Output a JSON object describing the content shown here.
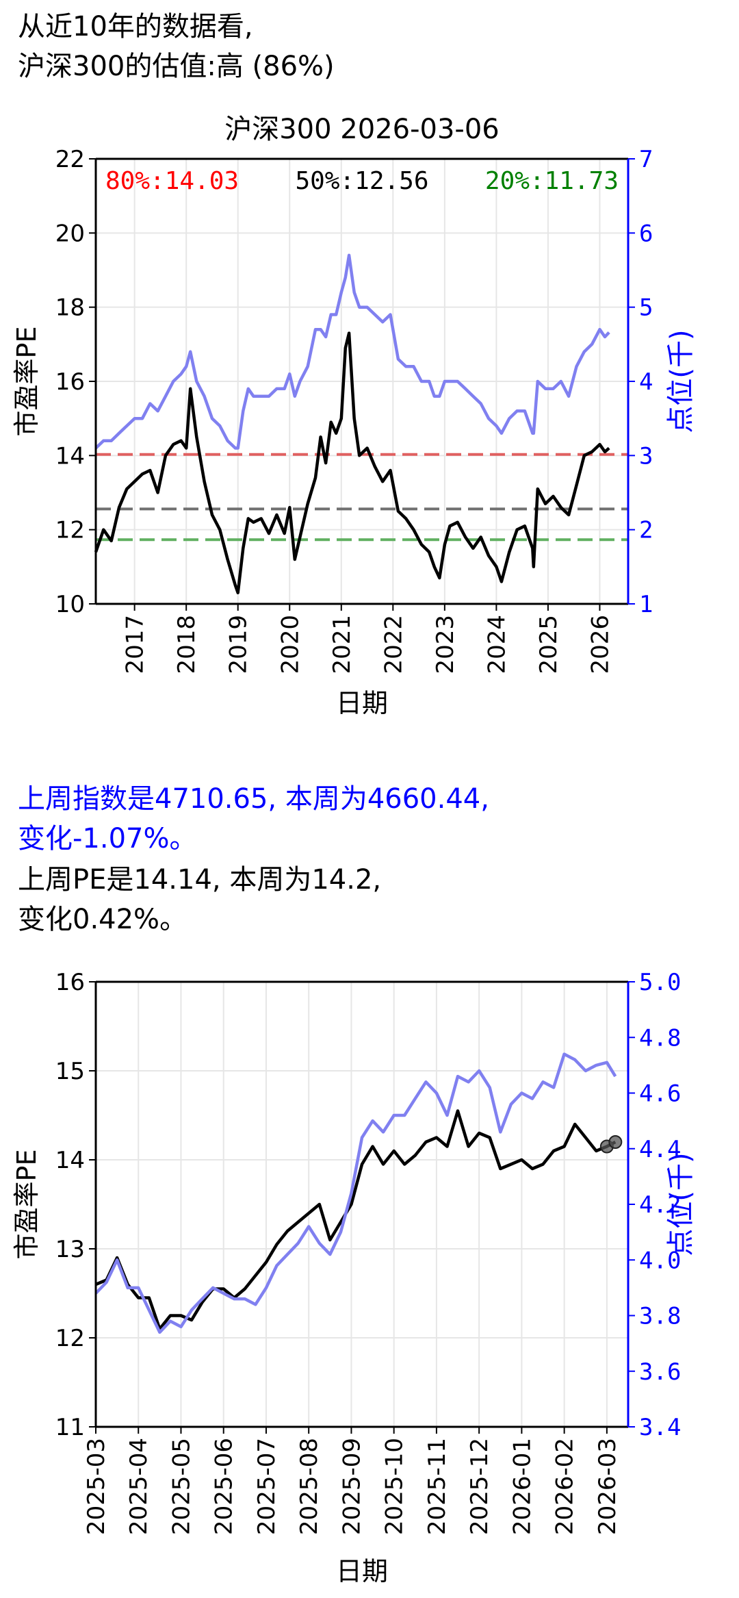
{
  "header": {
    "line1": "从近10年的数据看,",
    "line2": "沪深300的估值:高 (86%)"
  },
  "summary": {
    "index_line1": "上周指数是4710.65, 本周为4660.44,",
    "index_line2": "变化-1.07%。",
    "pe_line1": "上周PE是14.14, 本周为14.2,",
    "pe_line2": "变化0.42%。"
  },
  "colors": {
    "pe_line": "#000000",
    "index_line": "#8080f0",
    "right_axis": "#0000ff",
    "p80": "#e06060",
    "p50": "#707070",
    "p20": "#60b060"
  },
  "chart_data": [
    {
      "type": "line",
      "title": "沪深300 2026-03-06",
      "xlabel": "日期",
      "ylabel": "市盈率PE",
      "y2label": "点位(千)",
      "ylim": [
        10,
        22
      ],
      "y2lim": [
        1,
        7
      ],
      "yticks": [
        "10",
        "12",
        "14",
        "16",
        "18",
        "20",
        "22"
      ],
      "y2ticks": [
        "1",
        "2",
        "3",
        "4",
        "5",
        "6",
        "7"
      ],
      "xlim": [
        2016.25,
        2026.55
      ],
      "xticks": [
        "2017",
        "2018",
        "2019",
        "2020",
        "2021",
        "2022",
        "2023",
        "2024",
        "2025",
        "2026"
      ],
      "grid": true,
      "percentiles": [
        {
          "label": "80%:14.03",
          "value": 14.03,
          "color": "#e06060",
          "text_color": "#ff0000"
        },
        {
          "label": "50%:12.56",
          "value": 12.56,
          "color": "#707070",
          "text_color": "#000000"
        },
        {
          "label": "20%:11.73",
          "value": 11.73,
          "color": "#60b060",
          "text_color": "#008000"
        }
      ],
      "series": [
        {
          "axis": "left",
          "x": [
            2016.25,
            2016.4,
            2016.55,
            2016.7,
            2016.85,
            2017.0,
            2017.15,
            2017.3,
            2017.45,
            2017.6,
            2017.75,
            2017.9,
            2018.0,
            2018.08,
            2018.2,
            2018.35,
            2018.5,
            2018.65,
            2018.8,
            2018.95,
            2019.0,
            2019.1,
            2019.2,
            2019.3,
            2019.45,
            2019.6,
            2019.75,
            2019.9,
            2020.0,
            2020.1,
            2020.2,
            2020.35,
            2020.5,
            2020.6,
            2020.7,
            2020.8,
            2020.9,
            2021.0,
            2021.08,
            2021.15,
            2021.25,
            2021.35,
            2021.5,
            2021.65,
            2021.8,
            2021.95,
            2022.1,
            2022.25,
            2022.4,
            2022.55,
            2022.7,
            2022.8,
            2022.9,
            2023.0,
            2023.1,
            2023.25,
            2023.4,
            2023.55,
            2023.7,
            2023.85,
            2024.0,
            2024.1,
            2024.25,
            2024.4,
            2024.55,
            2024.7,
            2024.72,
            2024.8,
            2024.95,
            2025.1,
            2025.25,
            2025.4,
            2025.55,
            2025.7,
            2025.85,
            2026.0,
            2026.1,
            2026.18
          ],
          "values": [
            11.4,
            12.0,
            11.7,
            12.6,
            13.1,
            13.3,
            13.5,
            13.6,
            13.0,
            14.0,
            14.3,
            14.4,
            14.2,
            15.8,
            14.5,
            13.3,
            12.4,
            12.0,
            11.2,
            10.5,
            10.3,
            11.5,
            12.3,
            12.2,
            12.3,
            11.9,
            12.4,
            11.9,
            12.6,
            11.2,
            11.8,
            12.7,
            13.4,
            14.5,
            13.8,
            14.9,
            14.6,
            15.0,
            16.9,
            17.3,
            15.0,
            14.0,
            14.2,
            13.7,
            13.3,
            13.6,
            12.5,
            12.3,
            12.0,
            11.6,
            11.4,
            11.0,
            10.7,
            11.6,
            12.1,
            12.2,
            11.8,
            11.5,
            11.8,
            11.3,
            11.0,
            10.6,
            11.4,
            12.0,
            12.1,
            11.5,
            11.0,
            13.1,
            12.7,
            12.9,
            12.6,
            12.4,
            13.2,
            14.0,
            14.1,
            14.3,
            14.1,
            14.2
          ],
          "name": ""
        },
        {
          "axis": "right",
          "x": [
            2016.25,
            2016.4,
            2016.55,
            2016.7,
            2016.85,
            2017.0,
            2017.15,
            2017.3,
            2017.45,
            2017.6,
            2017.75,
            2017.9,
            2018.0,
            2018.08,
            2018.2,
            2018.35,
            2018.5,
            2018.65,
            2018.8,
            2018.95,
            2019.0,
            2019.1,
            2019.2,
            2019.3,
            2019.45,
            2019.6,
            2019.75,
            2019.9,
            2020.0,
            2020.1,
            2020.2,
            2020.35,
            2020.5,
            2020.6,
            2020.7,
            2020.8,
            2020.9,
            2021.0,
            2021.08,
            2021.15,
            2021.25,
            2021.35,
            2021.5,
            2021.65,
            2021.8,
            2021.95,
            2022.1,
            2022.25,
            2022.4,
            2022.55,
            2022.7,
            2022.8,
            2022.9,
            2023.0,
            2023.1,
            2023.25,
            2023.4,
            2023.55,
            2023.7,
            2023.85,
            2024.0,
            2024.1,
            2024.25,
            2024.4,
            2024.55,
            2024.7,
            2024.72,
            2024.8,
            2024.95,
            2025.1,
            2025.25,
            2025.4,
            2025.55,
            2025.7,
            2025.85,
            2026.0,
            2026.1,
            2026.18
          ],
          "values": [
            3.1,
            3.2,
            3.2,
            3.3,
            3.4,
            3.5,
            3.5,
            3.7,
            3.6,
            3.8,
            4.0,
            4.1,
            4.2,
            4.4,
            4.0,
            3.8,
            3.5,
            3.4,
            3.2,
            3.1,
            3.1,
            3.6,
            3.9,
            3.8,
            3.8,
            3.8,
            3.9,
            3.9,
            4.1,
            3.8,
            4.0,
            4.2,
            4.7,
            4.7,
            4.6,
            4.9,
            4.9,
            5.2,
            5.4,
            5.7,
            5.2,
            5.0,
            5.0,
            4.9,
            4.8,
            4.9,
            4.3,
            4.2,
            4.2,
            4.0,
            4.0,
            3.8,
            3.8,
            4.0,
            4.0,
            4.0,
            3.9,
            3.8,
            3.7,
            3.5,
            3.4,
            3.3,
            3.5,
            3.6,
            3.6,
            3.3,
            3.3,
            4.0,
            3.9,
            3.9,
            4.0,
            3.8,
            4.2,
            4.4,
            4.5,
            4.7,
            4.6,
            4.66
          ],
          "name": ""
        }
      ]
    },
    {
      "type": "line",
      "xlabel": "日期",
      "ylabel": "市盈率PE",
      "y2label": "点位(千)",
      "ylim": [
        11,
        16
      ],
      "y2lim": [
        3.4,
        5.0
      ],
      "yticks": [
        "11",
        "12",
        "13",
        "14",
        "15",
        "16"
      ],
      "y2ticks": [
        "3.4",
        "3.6",
        "3.8",
        "4.0",
        "4.2",
        "4.4",
        "4.6",
        "4.8",
        "5.0"
      ],
      "xlim": [
        0,
        12.5
      ],
      "xticks": [
        "2025-03",
        "2025-04",
        "2025-05",
        "2025-06",
        "2025-07",
        "2025-08",
        "2025-09",
        "2025-10",
        "2025-11",
        "2025-12",
        "2026-01",
        "2026-02",
        "2026-03"
      ],
      "grid": true,
      "series": [
        {
          "axis": "left",
          "x": [
            0,
            0.25,
            0.5,
            0.75,
            1.0,
            1.25,
            1.5,
            1.75,
            2.0,
            2.25,
            2.5,
            2.75,
            3.0,
            3.25,
            3.5,
            3.75,
            4.0,
            4.25,
            4.5,
            4.75,
            5.0,
            5.25,
            5.5,
            5.75,
            6.0,
            6.25,
            6.5,
            6.75,
            7.0,
            7.25,
            7.5,
            7.75,
            8.0,
            8.25,
            8.5,
            8.75,
            9.0,
            9.25,
            9.5,
            9.75,
            10.0,
            10.25,
            10.5,
            10.75,
            11.0,
            11.25,
            11.5,
            11.75,
            12.0,
            12.2
          ],
          "values": [
            12.6,
            12.65,
            12.9,
            12.6,
            12.45,
            12.45,
            12.1,
            12.25,
            12.25,
            12.2,
            12.4,
            12.55,
            12.55,
            12.45,
            12.55,
            12.7,
            12.85,
            13.05,
            13.2,
            13.3,
            13.4,
            13.5,
            13.1,
            13.3,
            13.5,
            13.95,
            14.15,
            13.95,
            14.1,
            13.95,
            14.05,
            14.2,
            14.25,
            14.15,
            14.55,
            14.15,
            14.3,
            14.25,
            13.9,
            13.95,
            14.0,
            13.9,
            13.95,
            14.1,
            14.15,
            14.4,
            14.25,
            14.1,
            14.15,
            14.2
          ],
          "name": ""
        },
        {
          "axis": "right",
          "x": [
            0,
            0.25,
            0.5,
            0.75,
            1.0,
            1.25,
            1.5,
            1.75,
            2.0,
            2.25,
            2.5,
            2.75,
            3.0,
            3.25,
            3.5,
            3.75,
            4.0,
            4.25,
            4.5,
            4.75,
            5.0,
            5.25,
            5.5,
            5.75,
            6.0,
            6.25,
            6.5,
            6.75,
            7.0,
            7.25,
            7.5,
            7.75,
            8.0,
            8.25,
            8.5,
            8.75,
            9.0,
            9.25,
            9.5,
            9.75,
            10.0,
            10.25,
            10.5,
            10.75,
            11.0,
            11.25,
            11.5,
            11.75,
            12.0,
            12.2
          ],
          "values": [
            3.88,
            3.92,
            4.0,
            3.9,
            3.9,
            3.82,
            3.74,
            3.78,
            3.76,
            3.82,
            3.86,
            3.9,
            3.88,
            3.86,
            3.86,
            3.84,
            3.9,
            3.98,
            4.02,
            4.06,
            4.12,
            4.06,
            4.02,
            4.1,
            4.24,
            4.44,
            4.5,
            4.46,
            4.52,
            4.52,
            4.58,
            4.64,
            4.6,
            4.52,
            4.66,
            4.64,
            4.68,
            4.62,
            4.46,
            4.56,
            4.6,
            4.58,
            4.64,
            4.62,
            4.74,
            4.72,
            4.68,
            4.7,
            4.71,
            4.66
          ],
          "name": ""
        }
      ]
    }
  ]
}
